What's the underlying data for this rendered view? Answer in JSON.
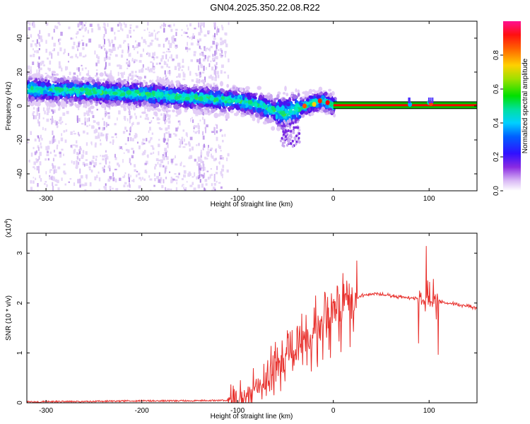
{
  "title": "GN04.2025.350.22.08.R22",
  "colors": {
    "snr_line": "#e8302c",
    "ridge_line": "#000000",
    "ridge_band": [
      "#00c000",
      "#ff0000"
    ],
    "frame": "#000000"
  },
  "chart_data": [
    {
      "type": "heatmap",
      "name": "spectrogram",
      "xlabel": "Height of straight line (km)",
      "ylabel": "Frequency (Hz)",
      "xlim": [
        -320,
        150
      ],
      "ylim": [
        -50,
        50
      ],
      "xticks": [
        -300,
        -200,
        -100,
        0,
        100
      ],
      "yticks": [
        -40,
        -20,
        0,
        20,
        40
      ],
      "ridge_frequency": {
        "x": [
          -320,
          -300,
          -250,
          -200,
          -150,
          -120,
          -100,
          -80,
          -60,
          -50,
          -40,
          -30,
          -20,
          -10,
          0,
          150
        ],
        "y": [
          10,
          9.5,
          8.5,
          7,
          5,
          4,
          3,
          1,
          -3,
          -5,
          -2,
          0,
          2,
          3,
          0.5,
          0.5
        ]
      },
      "colorbar": {
        "label": "Normalized spectral amplitude",
        "range": [
          0,
          1
        ],
        "ticks": [
          0.0,
          0.2,
          0.4,
          0.6,
          0.8
        ],
        "tick_labels": [
          "0.0",
          "0.2",
          "0.4",
          "0.6",
          "0.8"
        ]
      }
    },
    {
      "type": "line",
      "name": "snr",
      "xlabel": "Height of straight line (km)",
      "ylabel": "SNR (10 * v/v)",
      "scale_label": "(x10",
      "scale_exponent": "4",
      "xlim": [
        -320,
        150
      ],
      "ylim": [
        0,
        3.4
      ],
      "xticks": [
        -300,
        -200,
        -100,
        0,
        100
      ],
      "yticks": [
        0,
        1,
        2,
        3
      ],
      "series": [
        {
          "name": "SNR",
          "x": [
            -320,
            -250,
            -200,
            -150,
            -110,
            -100,
            -90,
            -80,
            -70,
            -60,
            -50,
            -40,
            -30,
            -20,
            -10,
            0,
            10,
            20,
            30,
            40,
            50,
            60,
            70,
            80,
            90,
            100,
            110,
            120,
            130,
            140,
            150
          ],
          "y": [
            0.02,
            0.03,
            0.04,
            0.04,
            0.05,
            0.07,
            0.15,
            0.3,
            0.5,
            0.7,
            0.9,
            1.0,
            1.15,
            1.4,
            1.6,
            1.75,
            1.9,
            2.05,
            2.15,
            2.18,
            2.17,
            2.15,
            2.12,
            2.1,
            2.1,
            2.05,
            2.05,
            2.0,
            1.97,
            1.94,
            1.9
          ]
        }
      ]
    }
  ]
}
